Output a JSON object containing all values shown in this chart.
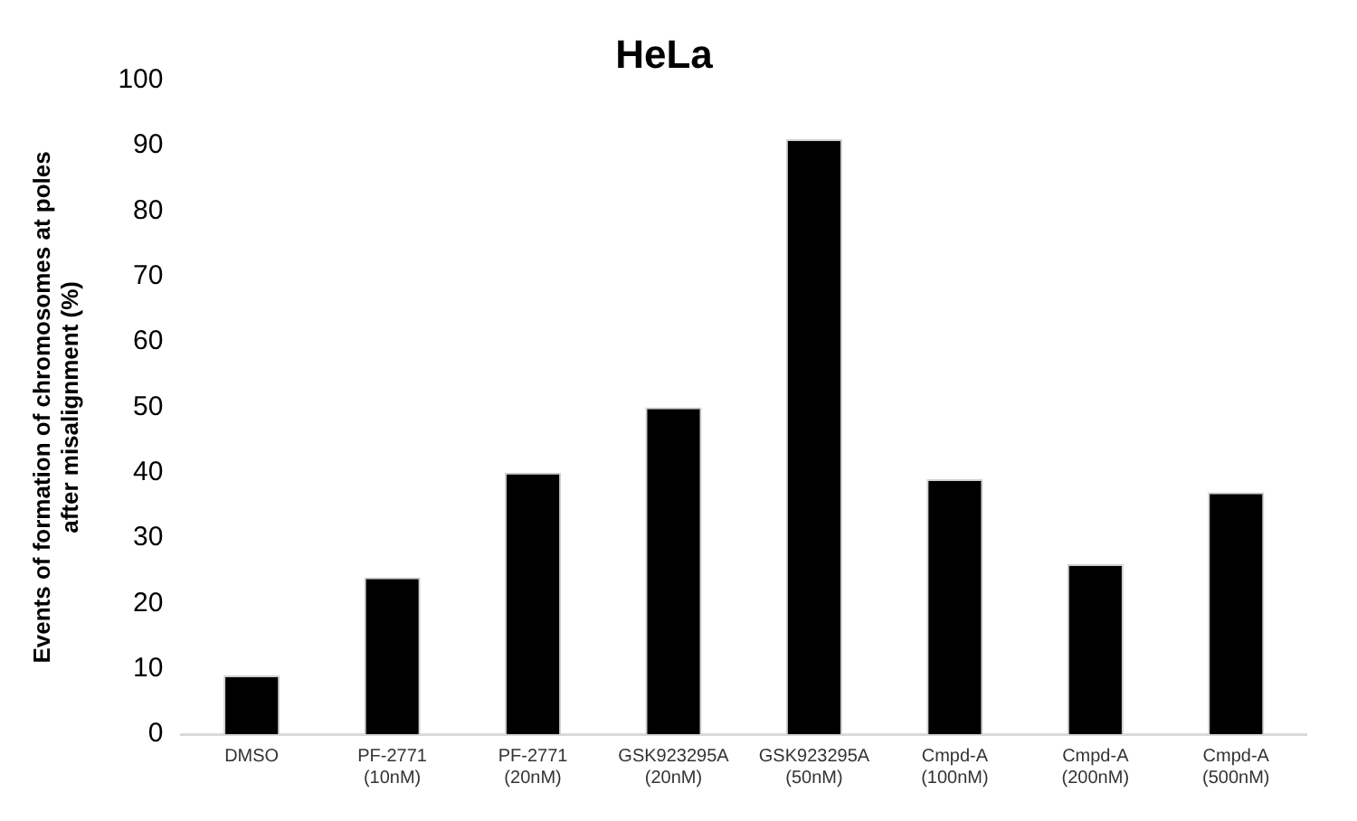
{
  "chart_data": {
    "type": "bar",
    "title": "HeLa",
    "ylabel": "Events of formation of chromosomes at poles\nafter misalignment (%)",
    "categories": [
      "DMSO",
      "PF-2771\n(10nM)",
      "PF-2771\n(20nM)",
      "GSK923295A\n(20nM)",
      "GSK923295A\n(50nM)",
      "Cmpd-A\n(100nM)",
      "Cmpd-A\n(200nM)",
      "Cmpd-A\n(500nM)"
    ],
    "values": [
      9,
      24,
      40,
      50,
      91,
      39,
      26,
      37
    ],
    "color": "#000000",
    "ylim": [
      0,
      100
    ],
    "yticks": [
      0,
      10,
      20,
      30,
      40,
      50,
      60,
      70,
      80,
      90,
      100
    ],
    "grid": false,
    "legend": false
  }
}
